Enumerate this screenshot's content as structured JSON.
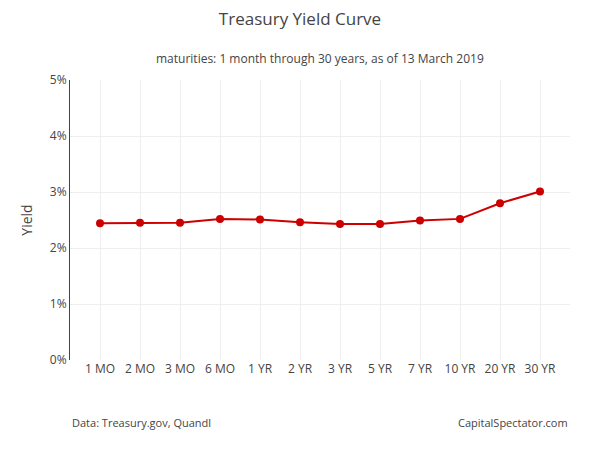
{
  "chart_data": {
    "type": "line",
    "title": "Treasury Yield Curve",
    "subtitle": "maturities: 1 month through 30 years, as of 13 March 2019",
    "ylabel": "Yield",
    "annotations": [
      "Data: Treasury.gov, Quandl",
      "CapitalSpectator.com"
    ],
    "categories": [
      "1 MO",
      "2 MO",
      "3 MO",
      "6 MO",
      "1 YR",
      "2 YR",
      "3 YR",
      "5 YR",
      "7 YR",
      "10 YR",
      "20 YR",
      "30 YR"
    ],
    "values": [
      2.44,
      2.45,
      2.45,
      2.52,
      2.51,
      2.46,
      2.43,
      2.43,
      2.49,
      2.52,
      2.8,
      3.01
    ],
    "color": "#cc0000",
    "marker": "circle",
    "ylim": [
      0,
      5
    ],
    "yticks": [
      {
        "value": 0,
        "label": "0%"
      },
      {
        "value": 1,
        "label": "1%"
      },
      {
        "value": 2,
        "label": "2%"
      },
      {
        "value": 3,
        "label": "3%"
      },
      {
        "value": 4,
        "label": "4%"
      },
      {
        "value": 5,
        "label": "5%"
      }
    ],
    "grid": true
  }
}
